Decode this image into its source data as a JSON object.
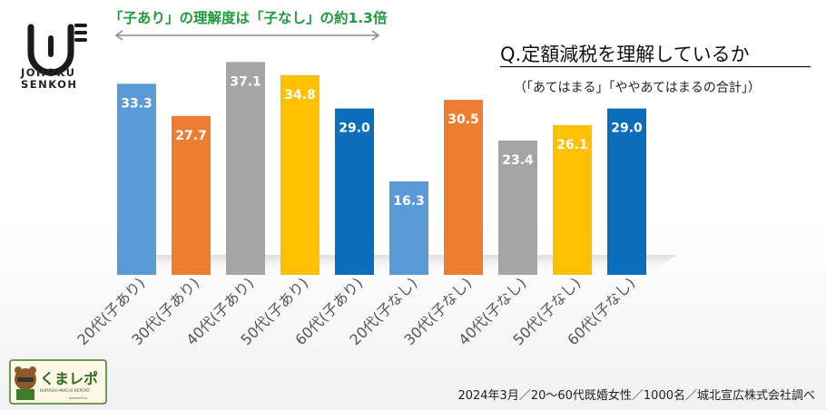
{
  "brand": {
    "line1": "JOHOKU",
    "line2": "SENKOH"
  },
  "annotation": "「子あり」の理解度は「子なし」の約1.3倍",
  "question": "Q.定額減税を理解しているか",
  "subtitle": "（「あてはまる」「ややあてはまるの合計」）",
  "source": "2024年3月／20～60代既婚女性／1000名／城北宣広株式会社調べ",
  "footer_logo": {
    "name": "くまレポ",
    "tagline": "KURASHI-MACHI REPORT",
    "powered": "powered by"
  },
  "colors": {
    "blue": "#5b9bd5",
    "orange": "#ed7d31",
    "gray": "#a5a5a5",
    "gold": "#ffc000",
    "darkblue": "#0a6ebd",
    "annotation": "#1f9a3c"
  },
  "chart_data": {
    "type": "bar",
    "categories": [
      "20代(子あり)",
      "30代(子あり)",
      "40代(子あり)",
      "50代(子あり)",
      "60代(子あり)",
      "20代(子なし)",
      "30代(子なし)",
      "40代(子なし)",
      "50代(子なし)",
      "60代(子なし)"
    ],
    "values": [
      33.3,
      27.7,
      37.1,
      34.8,
      29.0,
      16.3,
      30.5,
      23.4,
      26.1,
      29.0
    ],
    "value_labels": [
      "33.3",
      "27.7",
      "37.1",
      "34.8",
      "29.0",
      "16.3",
      "30.5",
      "23.4",
      "26.1",
      "29.0"
    ],
    "bar_colors": [
      "#5b9bd5",
      "#ed7d31",
      "#a5a5a5",
      "#ffc000",
      "#0a6ebd",
      "#5b9bd5",
      "#ed7d31",
      "#a5a5a5",
      "#ffc000",
      "#0a6ebd"
    ],
    "ylim": [
      0,
      40
    ],
    "grid": false,
    "legend": "none"
  }
}
